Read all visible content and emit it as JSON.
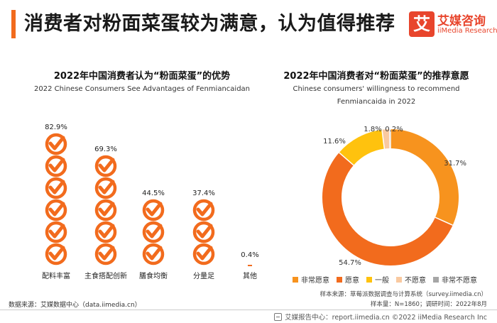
{
  "header": {
    "title": "消费者对粉面菜蛋较为满意，认为值得推荐",
    "logo_mark": "艾",
    "logo_cn": "艾媒咨询",
    "logo_en": "iiMedia Research"
  },
  "left_chart": {
    "title": "2022年中国消费者认为“粉面菜蛋”的优势",
    "subtitle": "2022 Chinese Consumers See Advantages of Fenmiancaidan"
  },
  "right_chart": {
    "title": "2022年中国消费者对“粉面菜蛋”的推荐意愿",
    "subtitle_line1": "Chinese consumers' willingness to recommend",
    "subtitle_line2": "Fenmiancaida in 2022"
  },
  "colors": {
    "orange": "#f7931e",
    "dark_orange": "#f26b1d",
    "yellow": "#ffc20e",
    "peach": "#f9c9a0",
    "gray": "#a6a6a6",
    "brand_red": "#e8452c"
  },
  "chart_data": [
    {
      "type": "bar",
      "title": "2022年中国消费者认为“粉面菜蛋”的优势",
      "subtitle": "2022 Chinese Consumers See Advantages of Fenmiancaidan",
      "categories": [
        "配料丰富",
        "主食搭配创新",
        "膳食均衡",
        "分量足",
        "其他"
      ],
      "values": [
        82.9,
        69.3,
        44.5,
        37.4,
        0.4
      ],
      "value_labels": [
        "82.9%",
        "69.3%",
        "44.5%",
        "37.4%",
        "0.4%"
      ],
      "icons_per_bar": [
        6,
        5,
        3,
        3,
        0
      ],
      "unit": "%",
      "ylim": [
        0,
        100
      ],
      "grid": false
    },
    {
      "type": "pie",
      "style": "donut",
      "title": "2022年中国消费者对“粉面菜蛋”的推荐意愿",
      "labels": [
        "非常愿意",
        "愿意",
        "一般",
        "不愿意",
        "非常不愿意"
      ],
      "values": [
        31.7,
        54.7,
        11.6,
        1.8,
        0.2
      ],
      "value_labels": [
        "31.7%",
        "54.7%",
        "11.6%",
        "1.8%",
        "0.2%"
      ],
      "colors": [
        "#f7931e",
        "#f26b1d",
        "#ffc20e",
        "#f9c9a0",
        "#a6a6a6"
      ],
      "legend_position": "bottom"
    }
  ],
  "sources": {
    "sample_source": "样本来源：草莓派数据调查与计算系统（survey.iimedia.cn）",
    "sample_size": "样本量：N=1860；调研时间：2022年8月",
    "data_source": "数据来源：艾媒数据中心（data.iimedia.cn）",
    "footer": "艾媒报告中心：report.iimedia.cn  ©2022  iiMedia Research  Inc"
  }
}
